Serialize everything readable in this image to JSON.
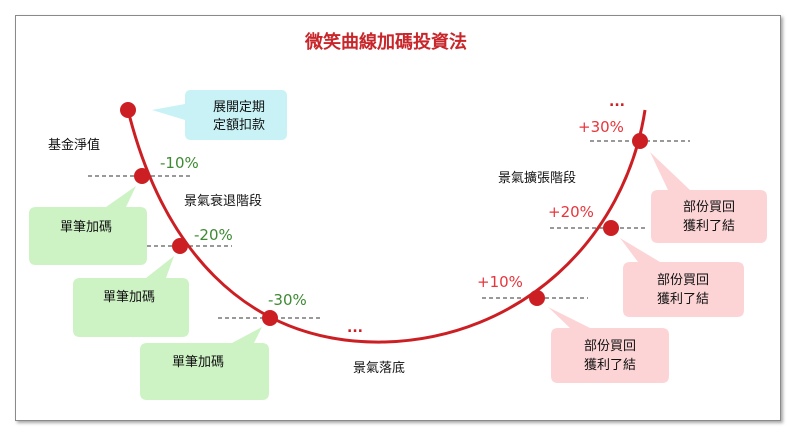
{
  "title": "微笑曲線加碼投資法",
  "start_box": {
    "line1": "展開定期",
    "line2": "定額扣款"
  },
  "labels": {
    "nav": "基金淨值",
    "recession": "景氣衰退階段",
    "bottom": "景氣落底",
    "expansion": "景氣擴張階段"
  },
  "ellipsis": "...",
  "buy_points": [
    {
      "pct": "-10%",
      "box": "單筆加碼"
    },
    {
      "pct": "-20%",
      "box": "單筆加碼"
    },
    {
      "pct": "-30%",
      "box": "單筆加碼"
    }
  ],
  "sell_points": [
    {
      "pct": "+10%",
      "line1": "部份買回",
      "line2": "獲利了結"
    },
    {
      "pct": "+20%",
      "line1": "部份買回",
      "line2": "獲利了結"
    },
    {
      "pct": "+30%",
      "line1": "部份買回",
      "line2": "獲利了結"
    }
  ],
  "colors": {
    "curve": "#cc1f24",
    "title": "#c8262a",
    "buy_pct": "#3d8a32",
    "sell_pct": "#e8353b",
    "start_box": "#c8f2f6",
    "buy_box": "#cdf2c4",
    "sell_box": "#fcd4d6"
  }
}
